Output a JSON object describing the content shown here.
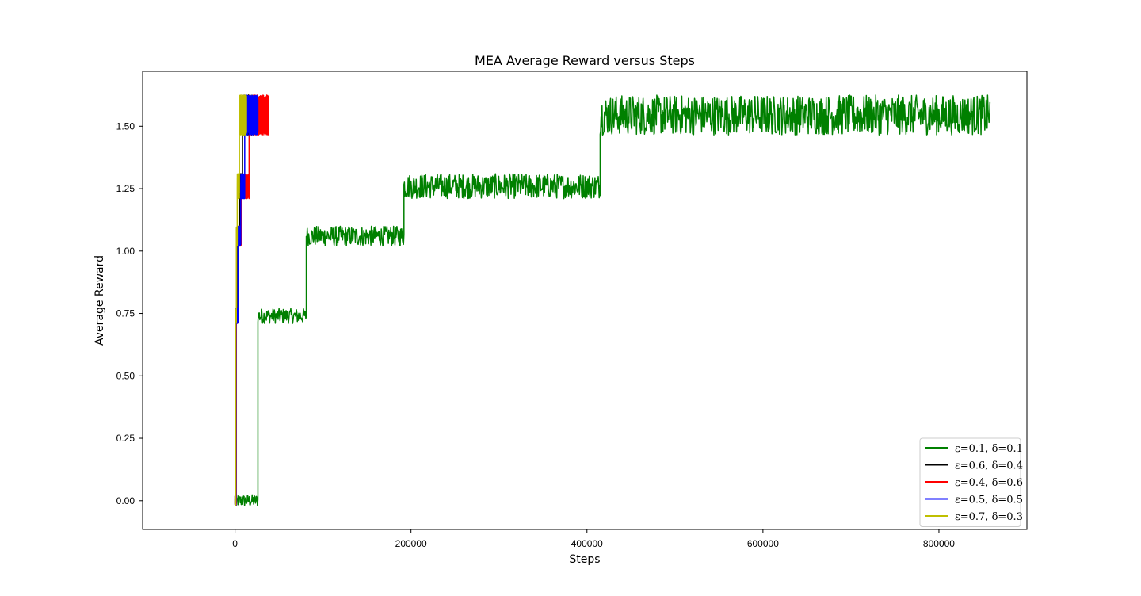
{
  "chart_data": {
    "type": "line",
    "title": "MEA Average Reward versus Steps",
    "xlabel": "Steps",
    "ylabel": "Average Reward",
    "xlim": [
      -105000,
      900000
    ],
    "ylim": [
      -0.115,
      1.72
    ],
    "xticks": [
      0,
      200000,
      400000,
      600000,
      800000
    ],
    "xtick_labels": [
      "0",
      "200000",
      "400000",
      "600000",
      "800000"
    ],
    "yticks": [
      0.0,
      0.25,
      0.5,
      0.75,
      1.0,
      1.25,
      1.5
    ],
    "ytick_labels": [
      "0.00",
      "0.25",
      "0.50",
      "0.75",
      "1.00",
      "1.25",
      "1.50"
    ],
    "grid": false,
    "legend_position": "lower-right",
    "series": [
      {
        "name": "ε=0.1, δ=0.1",
        "color": "#008000",
        "segments": [
          {
            "x_start": 0,
            "x_end": 26000,
            "mean": 0.0,
            "noise": 0.025
          },
          {
            "x_start": 26000,
            "x_end": 81000,
            "mean": 0.74,
            "noise": 0.03
          },
          {
            "x_start": 81000,
            "x_end": 192000,
            "mean": 1.06,
            "noise": 0.04
          },
          {
            "x_start": 192000,
            "x_end": 415000,
            "mean": 1.26,
            "noise": 0.05
          },
          {
            "x_start": 415000,
            "x_end": 858000,
            "mean": 1.545,
            "noise": 0.08
          }
        ]
      },
      {
        "name": "ε=0.6, δ=0.4",
        "color": "#000000",
        "segments": [
          {
            "x_start": 0,
            "x_end": 1000,
            "mean": 0.0,
            "noise": 0.02
          },
          {
            "x_start": 1000,
            "x_end": 3000,
            "mean": 0.74,
            "noise": 0.03
          },
          {
            "x_start": 3000,
            "x_end": 5500,
            "mean": 1.06,
            "noise": 0.04
          },
          {
            "x_start": 5500,
            "x_end": 8500,
            "mean": 1.26,
            "noise": 0.05
          },
          {
            "x_start": 8500,
            "x_end": 21000,
            "mean": 1.545,
            "noise": 0.08
          }
        ]
      },
      {
        "name": "ε=0.4, δ=0.6",
        "color": "#ff0000",
        "segments": [
          {
            "x_start": 0,
            "x_end": 1500,
            "mean": 0.0,
            "noise": 0.02
          },
          {
            "x_start": 1500,
            "x_end": 4000,
            "mean": 0.74,
            "noise": 0.03
          },
          {
            "x_start": 4000,
            "x_end": 7000,
            "mean": 1.06,
            "noise": 0.04
          },
          {
            "x_start": 7000,
            "x_end": 16000,
            "mean": 1.26,
            "noise": 0.05
          },
          {
            "x_start": 16000,
            "x_end": 38000,
            "mean": 1.545,
            "noise": 0.08
          }
        ]
      },
      {
        "name": "ε=0.5, δ=0.5",
        "color": "#0000ff",
        "segments": [
          {
            "x_start": 0,
            "x_end": 1200,
            "mean": 0.0,
            "noise": 0.02
          },
          {
            "x_start": 1200,
            "x_end": 3500,
            "mean": 0.74,
            "noise": 0.03
          },
          {
            "x_start": 3500,
            "x_end": 6500,
            "mean": 1.06,
            "noise": 0.04
          },
          {
            "x_start": 6500,
            "x_end": 11000,
            "mean": 1.26,
            "noise": 0.05
          },
          {
            "x_start": 11000,
            "x_end": 26000,
            "mean": 1.545,
            "noise": 0.08
          }
        ]
      },
      {
        "name": "ε=0.7, δ=0.3",
        "color": "#bfbf00",
        "segments": [
          {
            "x_start": 0,
            "x_end": 800,
            "mean": 0.0,
            "noise": 0.02
          },
          {
            "x_start": 800,
            "x_end": 1500,
            "mean": 0.74,
            "noise": 0.03
          },
          {
            "x_start": 1500,
            "x_end": 2500,
            "mean": 1.06,
            "noise": 0.04
          },
          {
            "x_start": 2500,
            "x_end": 5000,
            "mean": 1.26,
            "noise": 0.05
          },
          {
            "x_start": 5000,
            "x_end": 13000,
            "mean": 1.545,
            "noise": 0.08
          }
        ]
      }
    ]
  }
}
